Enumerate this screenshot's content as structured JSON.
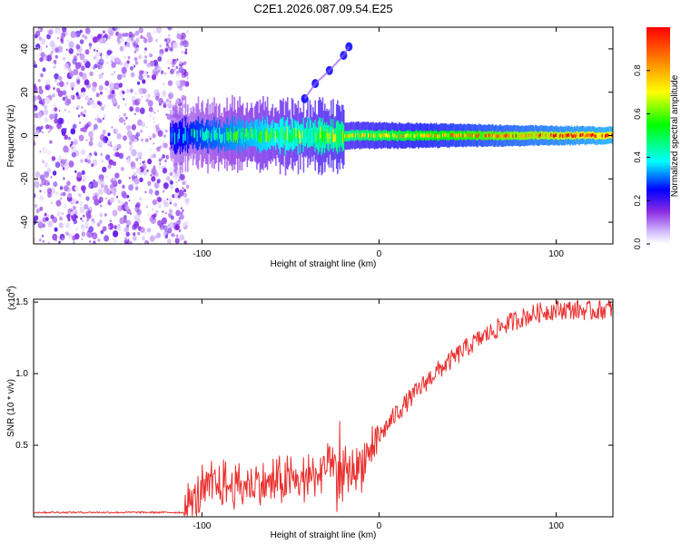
{
  "title": "C2E1.2026.087.09.54.E25",
  "chart_data": [
    {
      "type": "heatmap",
      "xlabel": "Height of straight line (km)",
      "ylabel": "Frequency (Hz)",
      "xlim": [
        -195,
        132
      ],
      "ylim": [
        -50,
        50
      ],
      "xticks": [
        -100,
        0,
        100
      ],
      "yticks": [
        -40,
        -20,
        0,
        20,
        40
      ],
      "colorbar": {
        "label": "Normalized spectral amplitude",
        "range": [
          0,
          1
        ],
        "ticks": [
          "0.0",
          "0.2",
          "0.4",
          "0.6",
          "0.8"
        ],
        "tick_values": [
          0.0,
          0.2,
          0.4,
          0.6,
          0.8
        ]
      },
      "features": [
        {
          "name": "noise-region",
          "x_range": [
            -195,
            -112
          ],
          "y_range": [
            -50,
            50
          ],
          "amplitude": 0.15
        },
        {
          "name": "main-band",
          "x_range": [
            -118,
            132
          ],
          "center_hz": 0,
          "amplitude_start": 0.3,
          "amplitude_end": 0.95
        },
        {
          "name": "chirp-streak",
          "points": [
            [
              -42,
              17
            ],
            [
              -36,
              24
            ],
            [
              -28,
              30
            ],
            [
              -20,
              37
            ],
            [
              -17,
              41
            ]
          ],
          "amplitude": 0.25
        }
      ]
    },
    {
      "type": "line",
      "xlabel": "Height of straight line (km)",
      "ylabel": "SNR (10 * v/v)",
      "scale_note": "(x10",
      "scale_exp": "4",
      "scale_close": ")",
      "xlim": [
        -195,
        132
      ],
      "ylim": [
        0,
        1.52
      ],
      "xticks": [
        -100,
        0,
        100
      ],
      "yticks": [
        "0.5",
        "1.0",
        "1.5"
      ],
      "ytick_values": [
        0.5,
        1.0,
        1.5
      ],
      "color": "#e8302e",
      "series": [
        {
          "name": "SNR",
          "x": [
            -195,
            -110,
            -103,
            -95,
            -80,
            -60,
            -40,
            -30,
            -20,
            -10,
            0,
            10,
            20,
            30,
            40,
            50,
            60,
            70,
            80,
            90,
            100,
            110,
            120,
            132
          ],
          "values": [
            0.03,
            0.03,
            0.12,
            0.2,
            0.2,
            0.22,
            0.25,
            0.32,
            0.3,
            0.35,
            0.55,
            0.72,
            0.85,
            0.98,
            1.08,
            1.18,
            1.26,
            1.33,
            1.38,
            1.42,
            1.44,
            1.44,
            1.43,
            1.45
          ]
        }
      ]
    }
  ]
}
